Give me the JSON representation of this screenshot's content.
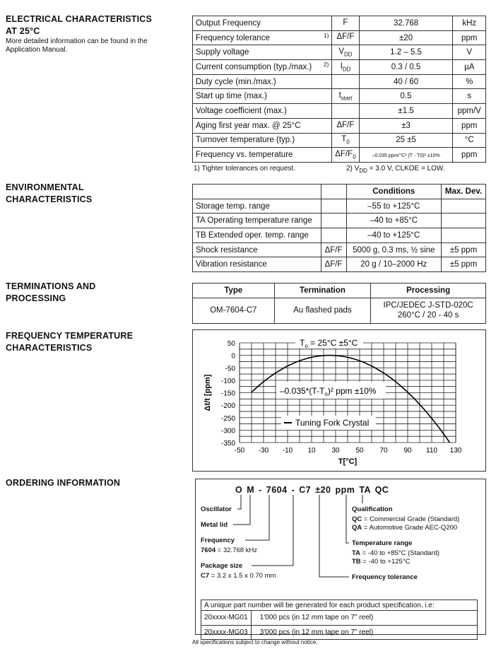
{
  "sections": {
    "electrical": {
      "title_line1": "ELECTRICAL CHARACTERISTICS",
      "title_line2": "AT 25°C",
      "note": "More detailed information can be found in the Application Manual."
    },
    "environmental": {
      "title_line1": "ENVIRONMENTAL",
      "title_line2": "CHARACTERISTICS"
    },
    "terminations": {
      "title_line1": "TERMINATIONS AND",
      "title_line2": "PROCESSING"
    },
    "freq_temp": {
      "title_line1": "FREQUENCY TEMPERATURE",
      "title_line2": "CHARACTERISTICS"
    },
    "ordering": {
      "title": "ORDERING INFORMATION"
    }
  },
  "electrical_table": [
    {
      "param": "Output Frequency",
      "note": "",
      "sym": "F",
      "sub": "",
      "value": "32.768",
      "unit": "kHz"
    },
    {
      "param": "Frequency tolerance",
      "note": "1)",
      "sym": "ΔF/F",
      "sub": "",
      "value": "±20",
      "unit": "ppm"
    },
    {
      "param": "Supply voltage",
      "note": "",
      "sym": "V",
      "sub": "DD",
      "value": "1.2 – 5.5",
      "unit": "V"
    },
    {
      "param": "Current consumption (typ./max.)",
      "note": "2)",
      "sym": "I",
      "sub": "DD",
      "value": "0.3 / 0.5",
      "unit": "µA"
    },
    {
      "param": "Duty cycle (min./max.)",
      "note": "",
      "sym": "",
      "sub": "",
      "value": "40 / 60",
      "unit": "%"
    },
    {
      "param": "Start up time (max.)",
      "note": "",
      "sym": "t",
      "sub": "start",
      "value": "0.5",
      "unit": "s"
    },
    {
      "param": "Voltage coefficient (max.)",
      "note": "",
      "sym": "",
      "sub": "",
      "value": "±1.5",
      "unit": "ppm/V"
    },
    {
      "param": "Aging first year max. @ 25°C",
      "note": "",
      "sym": "ΔF/F",
      "sub": "",
      "value": "±3",
      "unit": "ppm"
    },
    {
      "param": "Turnover temperature (typ.)",
      "note": "",
      "sym": "T",
      "sub": "0",
      "value": "25 ±5",
      "unit": "°C"
    },
    {
      "param": "Frequency vs. temperature",
      "note": "",
      "sym": "ΔF/F",
      "sub": "0",
      "value": "–0.035 ppm/°C² (T - T0)² ±10%",
      "unit": "ppm"
    }
  ],
  "electrical_footnotes": {
    "fn1": "1) Tighter tolerances on request.",
    "fn2_pre": "2) V",
    "fn2_sub": "DD",
    "fn2_post": " = 3.0 V, CLKOE = LOW."
  },
  "environmental_table": {
    "headers": [
      "",
      "",
      "Conditions",
      "Max. Dev."
    ],
    "rows": [
      [
        "Storage temp. range",
        "",
        "–55 to +125°C",
        ""
      ],
      [
        "TA Operating temperature range",
        "",
        "–40 to +85°C",
        ""
      ],
      [
        "TB Extended oper. temp. range",
        "",
        "–40 to +125°C",
        ""
      ],
      [
        "Shock resistance",
        "ΔF/F",
        "5000 g, 0.3 ms, ½ sine",
        "±5 ppm"
      ],
      [
        "Vibration resistance",
        "ΔF/F",
        "20 g / 10–2000 Hz",
        "±5 ppm"
      ]
    ]
  },
  "termination_table": {
    "headers": [
      "Type",
      "Termination",
      "Processing"
    ],
    "row": {
      "type": "OM-7604-C7",
      "termination": "Au flashed pads",
      "processing_line1": "IPC/JEDEC J-STD-020C",
      "processing_line2": "260°C / 20 - 40 s"
    }
  },
  "chart_data": {
    "type": "line",
    "xlabel": "T[°C]",
    "ylabel": "Δt/t [ppm]",
    "xlim": [
      -50,
      130
    ],
    "ylim": [
      -350,
      50
    ],
    "xticks": [
      -50,
      -30,
      -10,
      10,
      30,
      50,
      70,
      90,
      110,
      130
    ],
    "yticks": [
      50,
      0,
      -50,
      -100,
      -150,
      -200,
      -250,
      -300,
      -350
    ],
    "grid": true,
    "series": [
      {
        "name": "Tuning Fork Crystal",
        "formula": "-0.035*(T-25)^2",
        "x_range": [
          -40,
          125
        ],
        "color": "#000000"
      }
    ],
    "annotations": {
      "top": "T0 = 25°C ±5°C",
      "top_pre": "T",
      "top_sub": "o",
      "top_post": " = 25°C ±5°C",
      "formula_pre": "–0.035*(T-T",
      "formula_sub": "o",
      "formula_post": ")² ppm ±10%"
    },
    "legend": "center"
  },
  "ordering": {
    "code": {
      "o": "O",
      "m": "M",
      "d1": "-",
      "freq": "7604",
      "d2": "-",
      "pkg": "C7",
      "tol": "±20 ppm",
      "temp": "TA",
      "qual": "QC"
    },
    "oscillator": "Oscillator",
    "metal_lid": "Metal lid",
    "frequency": "Frequency",
    "frequency_key": "7604",
    "frequency_val": " = 32.768 kHz",
    "package": "Package size",
    "package_key": "C7",
    "package_val": " = 3.2 x 1.5 x 0.70 mm",
    "qualification": "Qualification",
    "qc_key": "QC",
    "qc_val": " = Commercial Grade (Standard)",
    "qa_key": "QA",
    "qa_val": " = Automotive Grade AEC-Q200",
    "temp_range": "Temperature range",
    "ta_key": "TA",
    "ta_val": " = -40 to +85°C (Standard)",
    "tb_key": "TB",
    "tb_val": " = -40 to +125°C",
    "freq_tol": "Frequency tolerance",
    "pn_note": "A unique part number will be generated for each product specification, i.e:",
    "pn_rows": [
      [
        "20xxxx-MG01",
        "1'000 pcs  (in 12 mm tape on 7\" reel)"
      ],
      [
        "20xxxx-MG03",
        "3'000 pcs  (in 12 mm tape on 7\" reel)"
      ]
    ]
  },
  "footer": "All specifications subject to change without notice."
}
